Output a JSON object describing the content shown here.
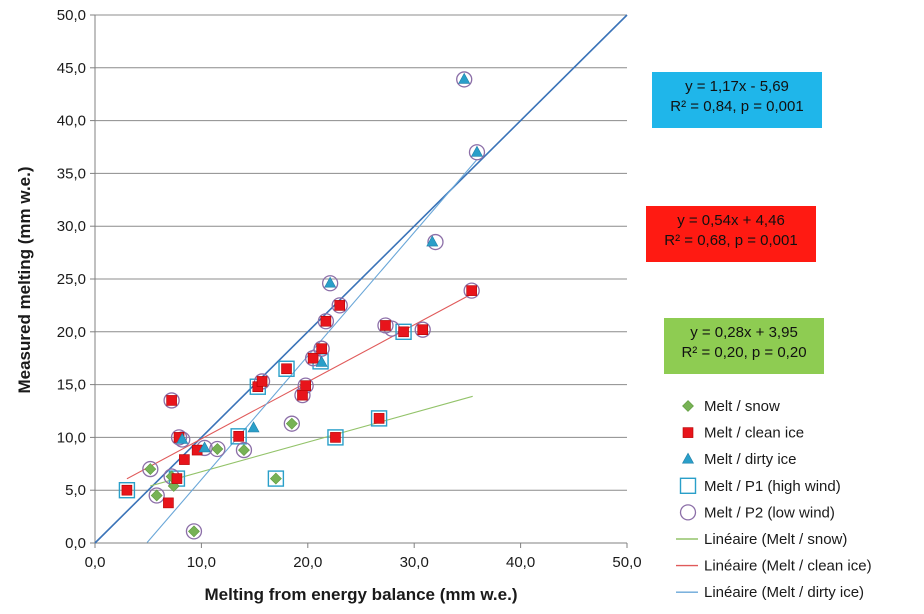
{
  "chart_data": {
    "type": "scatter",
    "xlabel": "Melting from energy balance  (mm w.e.)",
    "ylabel": "Measured melting (mm w.e.)",
    "xlim": [
      0,
      50
    ],
    "ylim": [
      0,
      50
    ],
    "xticks": [
      "0,0",
      "10,0",
      "20,0",
      "30,0",
      "40,0",
      "50,0"
    ],
    "yticks": [
      "0,0",
      "5,0",
      "10,0",
      "15,0",
      "20,0",
      "25,0",
      "30,0",
      "35,0",
      "40,0",
      "45,0",
      "50,0"
    ],
    "grid": "horizontal",
    "legend_position": "right",
    "series": [
      {
        "name": "Melt / snow",
        "marker": "diamond",
        "color": "#77b255",
        "points": [
          [
            5.2,
            7.0
          ],
          [
            5.8,
            4.5
          ],
          [
            7.2,
            6.3
          ],
          [
            7.4,
            5.4
          ],
          [
            9.3,
            1.1
          ],
          [
            11.5,
            8.9
          ],
          [
            14.0,
            8.8
          ],
          [
            17.0,
            6.1
          ],
          [
            18.5,
            11.3
          ]
        ]
      },
      {
        "name": "Melt / clean ice",
        "marker": "square",
        "color": "#e8141b",
        "points": [
          [
            3.0,
            5.0
          ],
          [
            6.9,
            3.8
          ],
          [
            7.2,
            13.5
          ],
          [
            7.7,
            6.1
          ],
          [
            7.9,
            10.0
          ],
          [
            8.4,
            7.9
          ],
          [
            9.6,
            8.8
          ],
          [
            13.5,
            10.1
          ],
          [
            15.3,
            14.8
          ],
          [
            15.7,
            15.3
          ],
          [
            18.0,
            16.5
          ],
          [
            19.5,
            14.0
          ],
          [
            19.8,
            14.9
          ],
          [
            20.5,
            17.5
          ],
          [
            21.3,
            18.4
          ],
          [
            21.7,
            21.0
          ],
          [
            22.6,
            10.0
          ],
          [
            23.0,
            22.5
          ],
          [
            26.7,
            11.8
          ],
          [
            27.3,
            20.6
          ],
          [
            29.0,
            20.0
          ],
          [
            30.8,
            20.2
          ],
          [
            35.4,
            23.9
          ]
        ]
      },
      {
        "name": "Melt / dirty ice",
        "marker": "triangle",
        "color": "#2a9fc9",
        "points": [
          [
            8.2,
            9.8
          ],
          [
            10.3,
            9.0
          ],
          [
            14.9,
            10.9
          ],
          [
            21.3,
            17.1
          ],
          [
            22.1,
            24.6
          ],
          [
            31.7,
            28.5
          ],
          [
            34.7,
            43.9
          ],
          [
            35.9,
            37.0
          ]
        ]
      },
      {
        "name": "Melt / P1 (high wind)",
        "marker": "open-square",
        "color": "#2a9fc9",
        "points": [
          [
            3.0,
            5.0
          ],
          [
            7.7,
            6.1
          ],
          [
            13.5,
            10.1
          ],
          [
            15.3,
            14.8
          ],
          [
            17.0,
            6.1
          ],
          [
            18.0,
            16.5
          ],
          [
            21.2,
            17.2
          ],
          [
            22.6,
            10.0
          ],
          [
            26.7,
            11.8
          ],
          [
            29.0,
            20.0
          ]
        ]
      },
      {
        "name": "Melt / P2 (low wind)",
        "marker": "open-circle",
        "color": "#8c6fa8",
        "points": [
          [
            5.2,
            7.0
          ],
          [
            5.8,
            4.5
          ],
          [
            7.2,
            13.5
          ],
          [
            7.2,
            6.3
          ],
          [
            7.9,
            10.0
          ],
          [
            8.2,
            9.8
          ],
          [
            10.3,
            9.0
          ],
          [
            11.5,
            8.9
          ],
          [
            14.0,
            8.8
          ],
          [
            15.7,
            15.3
          ],
          [
            18.5,
            11.3
          ],
          [
            19.5,
            14.0
          ],
          [
            19.8,
            14.9
          ],
          [
            20.5,
            17.5
          ],
          [
            21.3,
            18.4
          ],
          [
            21.7,
            21.0
          ],
          [
            22.1,
            24.6
          ],
          [
            23.0,
            22.5
          ],
          [
            27.3,
            20.6
          ],
          [
            27.9,
            20.3
          ],
          [
            30.8,
            20.2
          ],
          [
            32.0,
            28.5
          ],
          [
            34.7,
            43.9
          ],
          [
            35.4,
            23.9
          ],
          [
            35.9,
            37.0
          ],
          [
            9.3,
            1.1
          ]
        ]
      }
    ],
    "trendlines": [
      {
        "name": "Linéaire (Melt / snow)",
        "color": "#93c36a",
        "x": [
          5.2,
          35.5
        ],
        "slope": 0.28,
        "intercept": 3.95
      },
      {
        "name": "Linéaire (Melt / clean ice)",
        "color": "#e05a5a",
        "x": [
          3.0,
          35.4
        ],
        "slope": 0.54,
        "intercept": 4.46
      },
      {
        "name": "Linéaire (Melt / dirty ice)",
        "color": "#6aa7d8",
        "x": [
          4.9,
          35.9
        ],
        "slope": 1.17,
        "intercept": -5.69
      }
    ],
    "reference_line": {
      "color": "#3a73b8",
      "x": [
        0,
        50
      ],
      "y": [
        0,
        50
      ]
    },
    "annotations": [
      {
        "line1": "y = 1,17x - 5,69",
        "line2": "R² = 0,84, p = 0,001",
        "bg": "#1fb6ea"
      },
      {
        "line1": "y = 0,54x + 4,46",
        "line2": "R² = 0,68, p = 0,001",
        "bg": "#ff1a12"
      },
      {
        "line1": "y = 0,28x + 3,95",
        "line2": "R² = 0,20, p = 0,20",
        "bg": "#8ecc52"
      }
    ]
  }
}
